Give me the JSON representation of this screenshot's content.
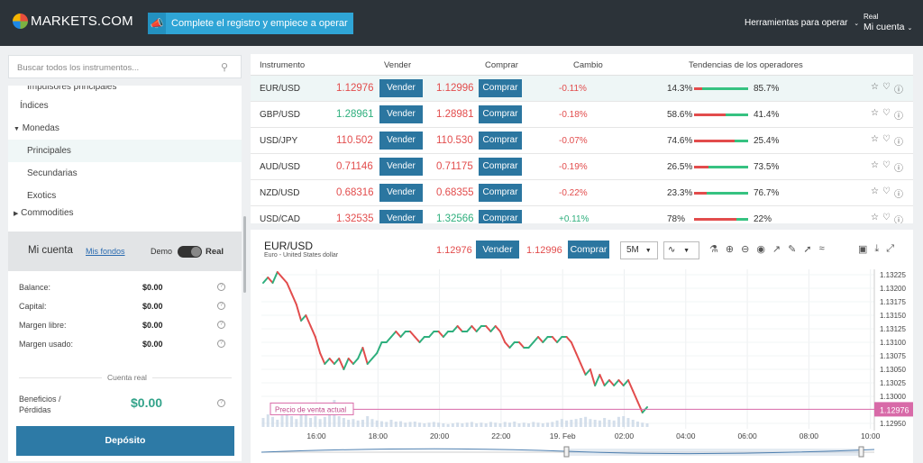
{
  "header": {
    "logo": "MARKETS.COM",
    "cta_label": "Complete el registro y empiece a operar",
    "tools_label": "Herramientas para operar",
    "account_small": "Real",
    "account_label": "Mi cuenta"
  },
  "sidebar": {
    "search_placeholder": "Buscar todos los instrumentos...",
    "items": [
      {
        "label": "Impulsores principales",
        "level": 2
      },
      {
        "label": "Índices",
        "level": 1
      },
      {
        "label": "Monedas",
        "level": 1
      },
      {
        "label": "Principales",
        "level": 2
      },
      {
        "label": "Secundarias",
        "level": 2
      },
      {
        "label": "Exotics",
        "level": 2
      },
      {
        "label": "Commodities",
        "level": 1
      }
    ]
  },
  "account": {
    "title": "Mi cuenta",
    "funds_link": "Mis fondos",
    "demo": "Demo",
    "real": "Real",
    "rows": [
      {
        "label": "Balance:",
        "value": "$0.00"
      },
      {
        "label": "Capital:",
        "value": "$0.00"
      },
      {
        "label": "Margen libre:",
        "value": "$0.00"
      },
      {
        "label": "Margen usado:",
        "value": "$0.00"
      }
    ],
    "section_label": "Cuenta real",
    "profit_label_1": "Beneficios /",
    "profit_label_2": "Pérdidas",
    "profit_value": "$0.00",
    "deposit_label": "Depósito"
  },
  "table": {
    "headers": {
      "instrument": "Instrumento",
      "sell": "Vender",
      "buy": "Comprar",
      "change": "Cambio",
      "sentiment": "Tendencias de los operadores"
    },
    "sell_label": "Vender",
    "buy_label": "Comprar",
    "rows": [
      {
        "symbol": "EUR/USD",
        "bid": "1.12976",
        "ask": "1.12996",
        "change": "-0.11%",
        "sell_pct": "14.3%",
        "buy_pct": "85.7%",
        "sell_frac": 0.143,
        "bid_dir": "down",
        "ask_dir": "down"
      },
      {
        "symbol": "GBP/USD",
        "bid": "1.28961",
        "ask": "1.28981",
        "change": "-0.18%",
        "sell_pct": "58.6%",
        "buy_pct": "41.4%",
        "sell_frac": 0.586,
        "bid_dir": "up",
        "ask_dir": "down"
      },
      {
        "symbol": "USD/JPY",
        "bid": "110.502",
        "ask": "110.530",
        "change": "-0.07%",
        "sell_pct": "74.6%",
        "buy_pct": "25.4%",
        "sell_frac": 0.746,
        "bid_dir": "down",
        "ask_dir": "down"
      },
      {
        "symbol": "AUD/USD",
        "bid": "0.71146",
        "ask": "0.71175",
        "change": "-0.19%",
        "sell_pct": "26.5%",
        "buy_pct": "73.5%",
        "sell_frac": 0.265,
        "bid_dir": "down",
        "ask_dir": "down"
      },
      {
        "symbol": "NZD/USD",
        "bid": "0.68316",
        "ask": "0.68355",
        "change": "-0.22%",
        "sell_pct": "23.3%",
        "buy_pct": "76.7%",
        "sell_frac": 0.233,
        "bid_dir": "down",
        "ask_dir": "down"
      },
      {
        "symbol": "USD/CAD",
        "bid": "1.32535",
        "ask": "1.32566",
        "change": "+0.11%",
        "sell_pct": "78%",
        "buy_pct": "22%",
        "sell_frac": 0.78,
        "bid_dir": "down",
        "ask_dir": "up"
      }
    ]
  },
  "chart_panel": {
    "symbol": "EUR/USD",
    "subtitle": "Euro - United States dollar",
    "bid": "1.12976",
    "ask": "1.12996",
    "sell_label": "Vender",
    "buy_label": "Comprar",
    "timeframe": "5M",
    "price_line_label": "Precio de venta actual",
    "colors": {
      "up": "#2eaf7d",
      "down": "#e24c4c",
      "accent": "#2b76a0",
      "price_line": "#d86aa8"
    }
  },
  "chart_data": {
    "type": "line",
    "title": "EUR/USD",
    "x_ticks": [
      "16:00",
      "18:00",
      "20:00",
      "22:00",
      "19. Feb",
      "02:00",
      "04:00",
      "06:00",
      "08:00",
      "10:00"
    ],
    "y_ticks": [
      "1.13225",
      "1.13200",
      "1.13175",
      "1.13150",
      "1.13125",
      "1.13100",
      "1.13075",
      "1.13050",
      "1.13025",
      "1.13000",
      "1.12950"
    ],
    "ylim": [
      1.1295,
      1.13235
    ],
    "current_price": "1.12976",
    "values": [
      1.1321,
      1.1322,
      1.1321,
      1.1323,
      1.1322,
      1.1321,
      1.1319,
      1.1317,
      1.1314,
      1.1315,
      1.1313,
      1.1311,
      1.1308,
      1.1306,
      1.1307,
      1.1306,
      1.1307,
      1.1305,
      1.1307,
      1.1306,
      1.1307,
      1.1309,
      1.1306,
      1.1307,
      1.1308,
      1.131,
      1.131,
      1.1311,
      1.1312,
      1.1311,
      1.1312,
      1.1312,
      1.1311,
      1.131,
      1.1311,
      1.1311,
      1.1312,
      1.1312,
      1.1311,
      1.1312,
      1.1312,
      1.1313,
      1.1312,
      1.1312,
      1.1313,
      1.1312,
      1.1313,
      1.1313,
      1.1312,
      1.1313,
      1.1312,
      1.131,
      1.1309,
      1.131,
      1.131,
      1.1309,
      1.1309,
      1.131,
      1.1311,
      1.131,
      1.1311,
      1.1311,
      1.131,
      1.1311,
      1.1311,
      1.131,
      1.1308,
      1.1306,
      1.1304,
      1.1305,
      1.1302,
      1.1304,
      1.1302,
      1.1303,
      1.1302,
      1.1303,
      1.1302,
      1.1303,
      1.1301,
      1.1299,
      1.1297,
      1.1298
    ],
    "volume": [
      0.25,
      0.35,
      0.28,
      0.2,
      0.32,
      0.4,
      0.3,
      0.22,
      0.6,
      0.35,
      0.25,
      0.3,
      0.22,
      0.28,
      0.42,
      0.75,
      0.3,
      0.25,
      0.2,
      0.22,
      0.18,
      0.2,
      0.3,
      0.22,
      0.18,
      0.16,
      0.14,
      0.2,
      0.15,
      0.16,
      0.12,
      0.14,
      0.15,
      0.12,
      0.1,
      0.12,
      0.14,
      0.12,
      0.1,
      0.08,
      0.1,
      0.12,
      0.1,
      0.12,
      0.14,
      0.1,
      0.12,
      0.1,
      0.14,
      0.12,
      0.1,
      0.14,
      0.12,
      0.15,
      0.1,
      0.12,
      0.1,
      0.14,
      0.12,
      0.1,
      0.12,
      0.14,
      0.18,
      0.22,
      0.18,
      0.2,
      0.22,
      0.25,
      0.28,
      0.22,
      0.2,
      0.18,
      0.25,
      0.2,
      0.18,
      0.28,
      0.3,
      0.25,
      0.2,
      0.15,
      0.12,
      0.1
    ]
  }
}
